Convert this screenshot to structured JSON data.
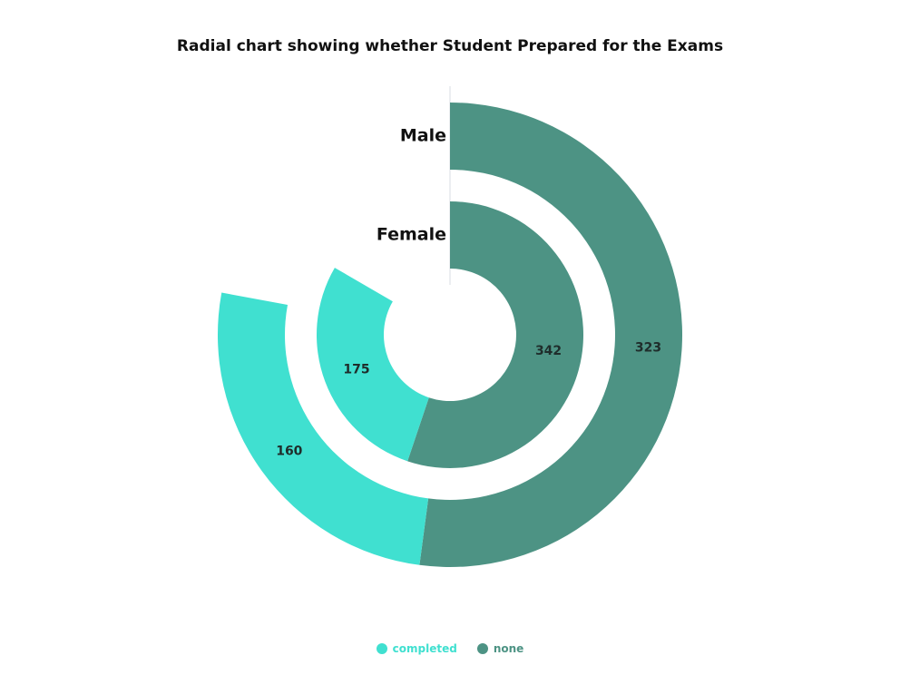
{
  "chart_data": {
    "type": "radial-bar",
    "title": "Radial chart showing whether Student Prepared for the Exams",
    "categories": [
      "Male",
      "Female"
    ],
    "series": [
      {
        "name": "completed",
        "color": "#40e0d0",
        "values": [
          160,
          175
        ]
      },
      {
        "name": "none",
        "color": "#4d9384",
        "values": [
          323,
          342
        ]
      }
    ],
    "legend": "bottom-center",
    "axis_max": 620,
    "grid": false
  }
}
